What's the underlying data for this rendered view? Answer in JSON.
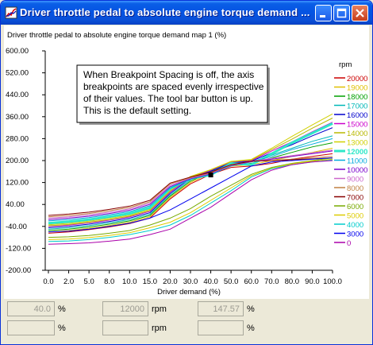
{
  "window": {
    "title": "Driver throttle pedal to absolute engine torque demand ...",
    "icon": "chart-window-icon",
    "buttons": [
      "minimize-icon",
      "maximize-icon",
      "close-icon"
    ]
  },
  "tooltip": {
    "lines": [
      "When Breakpoint Spacing is off, the axis",
      "breakpoints are spaced evenly irrespective",
      "of their values. The tool bar button is up.",
      "This is the default setting."
    ]
  },
  "status": {
    "row1": {
      "x_value": "40.0",
      "x_unit": "%",
      "rpm_value": "12000",
      "rpm_unit": "rpm",
      "z_value": "147.57",
      "z_unit": "%"
    },
    "row2": {
      "x_value": "",
      "x_unit": "%",
      "rpm_value": "",
      "rpm_unit": "rpm",
      "z_value": "",
      "z_unit": "%"
    }
  },
  "chart_data": {
    "type": "line",
    "title": "Driver throttle pedal to absolute engine torque demand map 1  (%)",
    "xlabel": "Driver demand  (%)",
    "legend_title": "rpm",
    "legend_placement": "right",
    "grid": false,
    "breakpoint_spacing": "even",
    "x": [
      0.0,
      2.0,
      5.0,
      8.0,
      10.0,
      15.0,
      20.0,
      30.0,
      40.0,
      50.0,
      60.0,
      70.0,
      80.0,
      90.0,
      100.0
    ],
    "x_tick_labels": [
      "0.0",
      "2.0",
      "5.0",
      "8.0",
      "10.0",
      "15.0",
      "20.0",
      "30.0",
      "40.0",
      "50.0",
      "60.0",
      "70.0",
      "80.0",
      "90.0",
      "100.0"
    ],
    "ylim": [
      -200,
      600
    ],
    "y_ticks": [
      600,
      520,
      440,
      360,
      280,
      200,
      120,
      40,
      -40,
      -120,
      -200
    ],
    "y_tick_labels": [
      "600.00",
      "520.00",
      "440.00",
      "360.00",
      "280.00",
      "200.00",
      "120.00",
      "40.00",
      "-40.00",
      "-120.00",
      "-200.00"
    ],
    "highlighted_series": "12000",
    "cursor": {
      "x": 40.0,
      "y": 147.57
    },
    "series": [
      {
        "name": "20000",
        "color": "#cc0000",
        "values": [
          -65,
          -60,
          -52,
          -42,
          -30,
          -10,
          60,
          115,
          150,
          175,
          180,
          190,
          205,
          215,
          225
        ]
      },
      {
        "name": "19000",
        "color": "#e0c000",
        "values": [
          -60,
          -55,
          -47,
          -37,
          -25,
          -5,
          65,
          120,
          155,
          180,
          185,
          200,
          215,
          230,
          245
        ]
      },
      {
        "name": "18000",
        "color": "#00a000",
        "values": [
          -55,
          -50,
          -42,
          -32,
          -20,
          0,
          70,
          125,
          158,
          185,
          190,
          210,
          230,
          250,
          265
        ]
      },
      {
        "name": "17000",
        "color": "#00b8b8",
        "values": [
          -50,
          -45,
          -37,
          -27,
          -15,
          5,
          75,
          130,
          160,
          190,
          195,
          220,
          245,
          270,
          290
        ]
      },
      {
        "name": "16000",
        "color": "#0000cc",
        "values": [
          -45,
          -40,
          -32,
          -22,
          -10,
          10,
          80,
          135,
          162,
          192,
          198,
          228,
          258,
          290,
          320
        ]
      },
      {
        "name": "15000",
        "color": "#cc00cc",
        "values": [
          -40,
          -35,
          -27,
          -17,
          -5,
          15,
          85,
          138,
          165,
          195,
          200,
          235,
          268,
          305,
          340
        ]
      },
      {
        "name": "14000",
        "color": "#b8b800",
        "values": [
          -38,
          -33,
          -25,
          -15,
          -3,
          18,
          88,
          140,
          166,
          196,
          202,
          240,
          278,
          318,
          355
        ]
      },
      {
        "name": "13000",
        "color": "#d0d000",
        "values": [
          -34,
          -29,
          -21,
          -11,
          1,
          22,
          92,
          142,
          167,
          197,
          204,
          245,
          288,
          330,
          370
        ]
      },
      {
        "name": "12000",
        "color": "#2ee8c8",
        "values": [
          -28,
          -23,
          -15,
          -5,
          7,
          28,
          98,
          135,
          148,
          190,
          185,
          225,
          265,
          300,
          335
        ]
      },
      {
        "name": "11000",
        "color": "#00aadd",
        "values": [
          -20,
          -15,
          -8,
          2,
          14,
          35,
          100,
          132,
          150,
          180,
          195,
          215,
          240,
          260,
          280
        ]
      },
      {
        "name": "10000",
        "color": "#7a00cc",
        "values": [
          -15,
          -10,
          -3,
          7,
          19,
          40,
          105,
          134,
          152,
          182,
          196,
          205,
          215,
          225,
          235
        ]
      },
      {
        "name": "9000",
        "color": "#cc66cc",
        "values": [
          -10,
          -5,
          2,
          12,
          24,
          45,
          110,
          136,
          154,
          183,
          197,
          208,
          218,
          228,
          238
        ]
      },
      {
        "name": "8000",
        "color": "#c08040",
        "values": [
          -5,
          0,
          7,
          17,
          29,
          50,
          115,
          138,
          156,
          184,
          198,
          200,
          205,
          210,
          215
        ]
      },
      {
        "name": "7000",
        "color": "#880000",
        "values": [
          0,
          5,
          12,
          22,
          34,
          55,
          118,
          140,
          158,
          185,
          198,
          200,
          203,
          206,
          210
        ]
      },
      {
        "name": "6000",
        "color": "#77aa00",
        "values": [
          -80,
          -78,
          -73,
          -65,
          -55,
          -35,
          -10,
          25,
          70,
          110,
          150,
          175,
          190,
          200,
          210
        ]
      },
      {
        "name": "5000",
        "color": "#ddcc00",
        "values": [
          -88,
          -86,
          -81,
          -73,
          -63,
          -45,
          -25,
          10,
          55,
          100,
          145,
          172,
          188,
          198,
          205
        ]
      },
      {
        "name": "4000",
        "color": "#00cccc",
        "values": [
          -95,
          -93,
          -88,
          -80,
          -70,
          -55,
          -35,
          0,
          45,
          90,
          140,
          170,
          185,
          195,
          202
        ]
      },
      {
        "name": "3000",
        "color": "#0000ee",
        "values": [
          -60,
          -57,
          -50,
          -40,
          -28,
          -10,
          20,
          60,
          100,
          140,
          180,
          195,
          200,
          205,
          210
        ]
      },
      {
        "name": "0",
        "color": "#aa00aa",
        "values": [
          -105,
          -103,
          -100,
          -94,
          -86,
          -70,
          -50,
          -10,
          30,
          80,
          130,
          165,
          185,
          195,
          200
        ]
      }
    ]
  }
}
